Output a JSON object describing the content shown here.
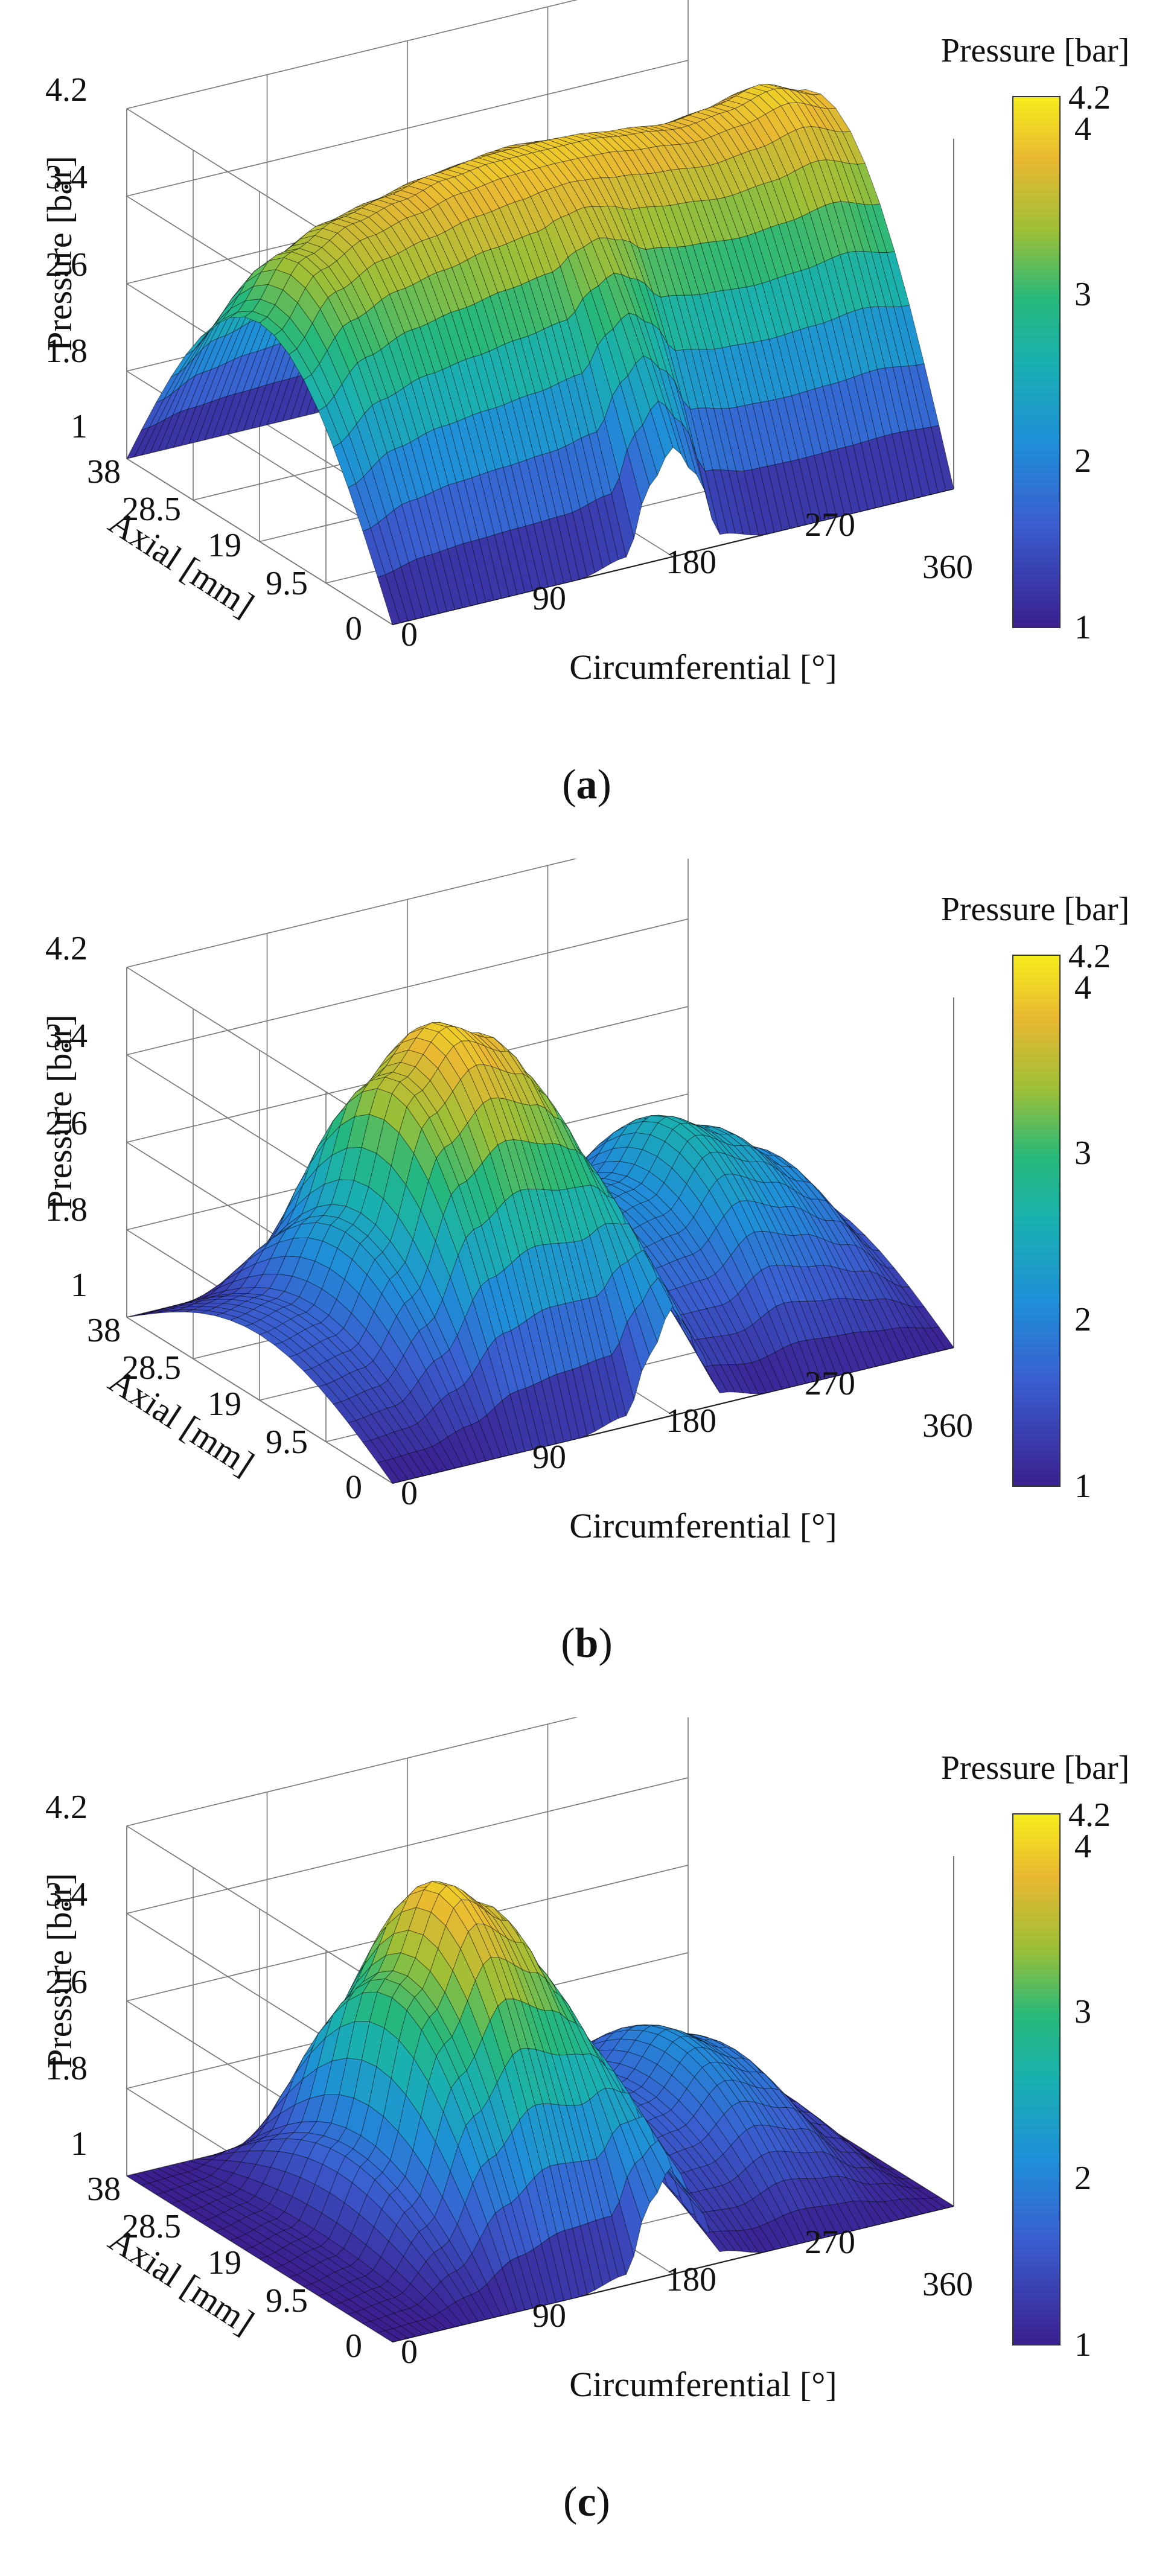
{
  "chart_data": [
    {
      "type": "surface",
      "panel_label": "a",
      "zlabel": "Pressure [bar]",
      "xlabel": "Circumferential [°]",
      "ylabel": "Axial [mm]",
      "x_ticks": [
        "0",
        "90",
        "180",
        "270",
        "360"
      ],
      "y_ticks": [
        "0",
        "9.5",
        "19",
        "28.5",
        "38"
      ],
      "z_ticks": [
        "1",
        "1.8",
        "2.6",
        "3.4",
        "4.2"
      ],
      "xlim": [
        0,
        360
      ],
      "ylim": [
        0,
        38
      ],
      "zlim": [
        1,
        4.2
      ],
      "colorbar": {
        "title": "Pressure [bar]",
        "ticks": [
          "1",
          "2",
          "3",
          "4",
          "4.2"
        ],
        "range": [
          1,
          4.2
        ]
      },
      "circumferential_profile": {
        "x": [
          0,
          30,
          60,
          90,
          120,
          150,
          165,
          180,
          195,
          210,
          240,
          270,
          300,
          330,
          360
        ],
        "peak_pressure": [
          3.0,
          3.5,
          3.7,
          3.8,
          3.9,
          3.95,
          3.95,
          3.95,
          3.95,
          3.95,
          3.9,
          3.85,
          3.9,
          4.0,
          3.85
        ],
        "edge_pressure": [
          1,
          1,
          1,
          1,
          1,
          1.1,
          1.7,
          2.0,
          1.7,
          1.1,
          1,
          1,
          1,
          1,
          1
        ]
      }
    },
    {
      "type": "surface",
      "panel_label": "b",
      "zlabel": "Pressure [bar]",
      "xlabel": "Circumferential [°]",
      "ylabel": "Axial [mm]",
      "x_ticks": [
        "0",
        "90",
        "180",
        "270",
        "360"
      ],
      "y_ticks": [
        "0",
        "9.5",
        "19",
        "28.5",
        "38"
      ],
      "z_ticks": [
        "1",
        "1.8",
        "2.6",
        "3.4",
        "4.2"
      ],
      "xlim": [
        0,
        360
      ],
      "ylim": [
        0,
        38
      ],
      "zlim": [
        1,
        4.2
      ],
      "colorbar": {
        "title": "Pressure [bar]",
        "ticks": [
          "1",
          "2",
          "3",
          "4",
          "4.2"
        ],
        "range": [
          1,
          4.2
        ]
      },
      "circumferential_profile": {
        "x": [
          0,
          30,
          60,
          90,
          120,
          150,
          165,
          180,
          195,
          210,
          240,
          270,
          300,
          330,
          360
        ],
        "peak_pressure": [
          1.6,
          1.7,
          2.4,
          3.6,
          4.0,
          3.8,
          3.5,
          3.0,
          2.4,
          2.0,
          2.1,
          2.6,
          2.4,
          2.1,
          1.6
        ],
        "edge_pressure": [
          1,
          1,
          1,
          1,
          1,
          1.1,
          1.6,
          2.0,
          1.6,
          1.1,
          1,
          1,
          1,
          1,
          1
        ]
      }
    },
    {
      "type": "surface",
      "panel_label": "c",
      "zlabel": "Pressure [bar]",
      "xlabel": "Circumferential [°]",
      "ylabel": "Axial [mm]",
      "x_ticks": [
        "0",
        "90",
        "180",
        "270",
        "360"
      ],
      "y_ticks": [
        "0",
        "9.5",
        "19",
        "28.5",
        "38"
      ],
      "z_ticks": [
        "1",
        "1.8",
        "2.6",
        "3.4",
        "4.2"
      ],
      "xlim": [
        0,
        360
      ],
      "ylim": [
        0,
        38
      ],
      "zlim": [
        1,
        4.2
      ],
      "colorbar": {
        "title": "Pressure [bar]",
        "ticks": [
          "1",
          "2",
          "3",
          "4",
          "4.2"
        ],
        "range": [
          1,
          4.2
        ]
      },
      "circumferential_profile": {
        "x": [
          0,
          30,
          60,
          90,
          120,
          150,
          165,
          180,
          195,
          210,
          240,
          270,
          300,
          330,
          360
        ],
        "peak_pressure": [
          1.0,
          1.1,
          1.8,
          3.2,
          4.0,
          3.7,
          3.3,
          2.8,
          2.0,
          1.6,
          1.7,
          2.1,
          1.9,
          1.4,
          1.0
        ],
        "edge_pressure": [
          1,
          1,
          1,
          1,
          1,
          1.1,
          1.7,
          2.0,
          1.6,
          1.1,
          1,
          1,
          1,
          1,
          1
        ]
      }
    }
  ]
}
